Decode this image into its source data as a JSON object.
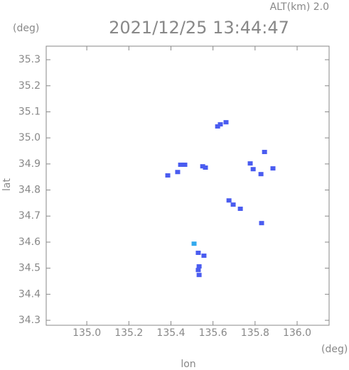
{
  "chart_data": {
    "type": "scatter",
    "title": "2021/12/25 13:44:47",
    "subtitle": "ALT(km) 2.0",
    "x_label": "lon",
    "y_label": "lat",
    "x_unit": "(deg)",
    "y_unit": "(deg)",
    "xlim": [
      134.807,
      136.152
    ],
    "ylim": [
      34.281,
      35.352
    ],
    "xticks": [
      {
        "value": 135.0,
        "label": "135.0"
      },
      {
        "value": 135.2,
        "label": "135.2"
      },
      {
        "value": 135.4,
        "label": "135.4"
      },
      {
        "value": 135.6,
        "label": "135.6"
      },
      {
        "value": 135.8,
        "label": "135.8"
      },
      {
        "value": 136.0,
        "label": "136.0"
      }
    ],
    "yticks": [
      34.3,
      34.4,
      34.5,
      34.6,
      34.7,
      34.8,
      34.9,
      {
        "value": 35.0,
        "label": "35.0"
      },
      35.1,
      35.2,
      35.3
    ],
    "grid": false,
    "series": [
      {
        "color": "#4a5cf0",
        "x": [
          135.635,
          135.662,
          135.622,
          135.446,
          135.432,
          135.385,
          135.466,
          135.551,
          135.564,
          135.777,
          135.791,
          135.828,
          135.845,
          135.885,
          135.676,
          135.696,
          135.73,
          135.831,
          135.53,
          135.557,
          135.534,
          135.53,
          135.534
        ],
        "y": [
          35.052,
          35.06,
          35.044,
          34.897,
          34.869,
          34.856,
          34.897,
          34.891,
          34.886,
          34.902,
          34.88,
          34.861,
          34.946,
          34.883,
          34.76,
          34.744,
          34.728,
          34.673,
          34.559,
          34.548,
          34.507,
          34.493,
          34.474
        ]
      },
      {
        "color": "#33aaee",
        "x": [
          135.51
        ],
        "y": [
          34.594
        ]
      }
    ]
  }
}
